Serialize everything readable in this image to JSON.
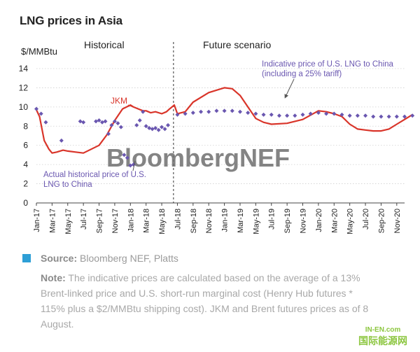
{
  "title": "LNG prices in Asia",
  "chart_data": {
    "type": "line",
    "ylabel": "$/MMBtu",
    "ylim": [
      0,
      14
    ],
    "yticks": [
      0,
      2,
      4,
      6,
      8,
      10,
      12,
      14
    ],
    "categories": [
      "Jan-17",
      "Mar-17",
      "May-17",
      "Jul-17",
      "Sep-17",
      "Nov-17",
      "Jan-18",
      "Mar-18",
      "May-18",
      "Jul-18",
      "Sep-18",
      "Nov-18",
      "Jan-19",
      "Mar-19",
      "May-19",
      "Jul-19",
      "Sep-19",
      "Nov-19",
      "Jan-20",
      "Mar-20",
      "May-20",
      "Jul-20",
      "Sep-20",
      "Nov-20"
    ],
    "sections": {
      "historical": "Historical",
      "future": "Future scenario"
    },
    "watermark": "BloombergNEF",
    "annotations": {
      "jkm": "JKM",
      "indicative": "Indicative price  of U.S. LNG to China (including a 25% tariff)",
      "actual": "Actual historical price of U.S. LNG to China"
    },
    "series": [
      {
        "name": "JKM",
        "color": "#d9352a",
        "x": [
          0,
          0.2,
          0.5,
          0.8,
          1.0,
          1.3,
          1.7,
          2.0,
          2.5,
          3.0,
          3.5,
          4.0,
          4.5,
          5.0,
          5.5,
          6.0,
          6.2,
          6.5,
          6.8,
          7.0,
          7.3,
          7.6,
          8.0,
          8.3,
          8.5,
          8.8,
          9.0,
          9.5,
          10,
          11,
          12,
          12.5,
          13,
          13.5,
          14,
          14.5,
          15,
          16,
          17,
          18,
          18.5,
          19,
          19.5,
          20,
          20.5,
          21,
          21.5,
          22,
          22.5,
          23,
          23.5,
          24
        ],
        "values": [
          9.7,
          9.0,
          6.5,
          5.6,
          5.2,
          5.3,
          5.5,
          5.4,
          5.3,
          5.2,
          5.6,
          6.0,
          7.1,
          8.6,
          9.8,
          10.2,
          10.0,
          9.8,
          9.6,
          9.6,
          9.4,
          9.5,
          9.3,
          9.5,
          9.8,
          10.2,
          9.3,
          9.5,
          10.5,
          11.5,
          12.0,
          11.9,
          11.2,
          10.0,
          8.8,
          8.4,
          8.2,
          8.3,
          8.7,
          9.6,
          9.5,
          9.3,
          9.0,
          8.2,
          7.7,
          7.6,
          7.5,
          7.5,
          7.7,
          8.2,
          8.7,
          9.2
        ]
      },
      {
        "name": "Actual historical price of U.S. LNG to China",
        "color": "#6a57b0",
        "x": [
          0,
          0.3,
          0.6,
          1.6,
          2.8,
          3.0,
          3.8,
          4.0,
          4.2,
          4.4,
          4.6,
          4.8,
          5.0,
          5.2,
          5.4,
          5.6,
          5.8,
          6.0,
          6.2,
          6.4,
          6.6,
          6.8,
          7.0,
          7.2,
          7.4,
          7.6,
          7.8,
          8.0,
          8.2,
          8.4
        ],
        "values": [
          9.8,
          9.3,
          8.4,
          6.5,
          8.5,
          8.4,
          8.5,
          8.6,
          8.4,
          8.5,
          7.2,
          8.1,
          8.5,
          8.3,
          7.9,
          5.0,
          4.7,
          3.9,
          4.0,
          8.1,
          8.6,
          9.5,
          8.0,
          7.8,
          7.7,
          7.8,
          7.6,
          7.9,
          7.7,
          8.1
        ]
      },
      {
        "name": "Indicative price of U.S. LNG to China (including a 25% tariff)",
        "color": "#6a57b0",
        "x": [
          9.0,
          9.5,
          10,
          10.5,
          11,
          11.5,
          12,
          12.5,
          13,
          13.5,
          14,
          14.5,
          15,
          15.5,
          16,
          16.5,
          17,
          17.5,
          18,
          18.5,
          19,
          19.5,
          20,
          20.5,
          21,
          21.5,
          22,
          22.5,
          23,
          23.5,
          24
        ],
        "values": [
          9.2,
          9.3,
          9.4,
          9.5,
          9.5,
          9.6,
          9.6,
          9.6,
          9.5,
          9.4,
          9.3,
          9.2,
          9.2,
          9.1,
          9.1,
          9.1,
          9.2,
          9.3,
          9.4,
          9.3,
          9.3,
          9.2,
          9.1,
          9.1,
          9.1,
          9.0,
          9.0,
          9.0,
          9.0,
          9.0,
          9.1
        ]
      }
    ]
  },
  "footer": {
    "source_label": "Source:",
    "source_text": " Bloomberg NEF, Platts",
    "note_label": "Note:",
    "note_text": " The indicative prices are calculated based on the average of a 13% Brent-linked price and U.S. short-run marginal cost (Henry Hub futures * 115% plus a $2/MMBtu shipping cost). JKM and Brent futures prices as of 8 August."
  },
  "logo": {
    "top": "IN-EN.com",
    "bottom": "国际能源网"
  }
}
